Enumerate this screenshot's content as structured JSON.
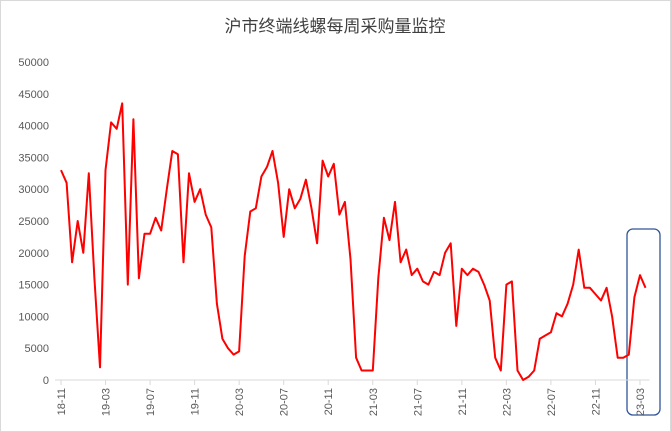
{
  "chart_data": {
    "type": "line",
    "title": "沪市终端线螺每周采购量监控",
    "categories": [
      "18-11",
      null,
      null,
      null,
      null,
      null,
      null,
      null,
      "19-03",
      null,
      null,
      null,
      null,
      null,
      null,
      null,
      "19-07",
      null,
      null,
      null,
      null,
      null,
      null,
      null,
      "19-11",
      null,
      null,
      null,
      null,
      null,
      null,
      null,
      "20-03",
      null,
      null,
      null,
      null,
      null,
      null,
      null,
      "20-07",
      null,
      null,
      null,
      null,
      null,
      null,
      null,
      "20-11",
      null,
      null,
      null,
      null,
      null,
      null,
      null,
      "21-03",
      null,
      null,
      null,
      null,
      null,
      null,
      null,
      "21-07",
      null,
      null,
      null,
      null,
      null,
      null,
      null,
      "21-11",
      null,
      null,
      null,
      null,
      null,
      null,
      null,
      "22-03",
      null,
      null,
      null,
      null,
      null,
      null,
      null,
      "22-07",
      null,
      null,
      null,
      null,
      null,
      null,
      null,
      "22-11",
      null,
      null,
      null,
      null,
      null,
      null,
      null,
      "23-03",
      null
    ],
    "series": [
      {
        "color": "#ff0000",
        "values": [
          33000,
          31000,
          18500,
          25000,
          20000,
          32500,
          16000,
          2000,
          33000,
          40500,
          39500,
          43500,
          15000,
          41000,
          16000,
          23000,
          23000,
          25500,
          23500,
          30000,
          36000,
          35500,
          18500,
          32500,
          28000,
          30000,
          26000,
          24000,
          12000,
          6500,
          5000,
          4000,
          4500,
          19500,
          26500,
          27000,
          32000,
          33500,
          36000,
          31000,
          22500,
          30000,
          27000,
          28500,
          31500,
          27000,
          21500,
          34500,
          32000,
          34000,
          26000,
          28000,
          19000,
          3500,
          1500,
          1500,
          1500,
          16000,
          25500,
          22000,
          28000,
          18500,
          20500,
          16500,
          17500,
          15500,
          15000,
          17000,
          16500,
          20000,
          21500,
          8500,
          17500,
          16500,
          17500,
          17000,
          15000,
          12500,
          3500,
          1500,
          15000,
          15500,
          1500,
          0,
          500,
          1500,
          6500,
          7000,
          7500,
          10500,
          10000,
          12000,
          15000,
          20500,
          14500,
          14500,
          13500,
          12500,
          14500,
          10000,
          3500,
          3500,
          4000,
          13000,
          16500,
          14500
        ]
      }
    ],
    "ylim": [
      0,
      50000
    ],
    "yticks": [
      0,
      5000,
      10000,
      15000,
      20000,
      25000,
      30000,
      35000,
      40000,
      45000,
      50000
    ]
  }
}
